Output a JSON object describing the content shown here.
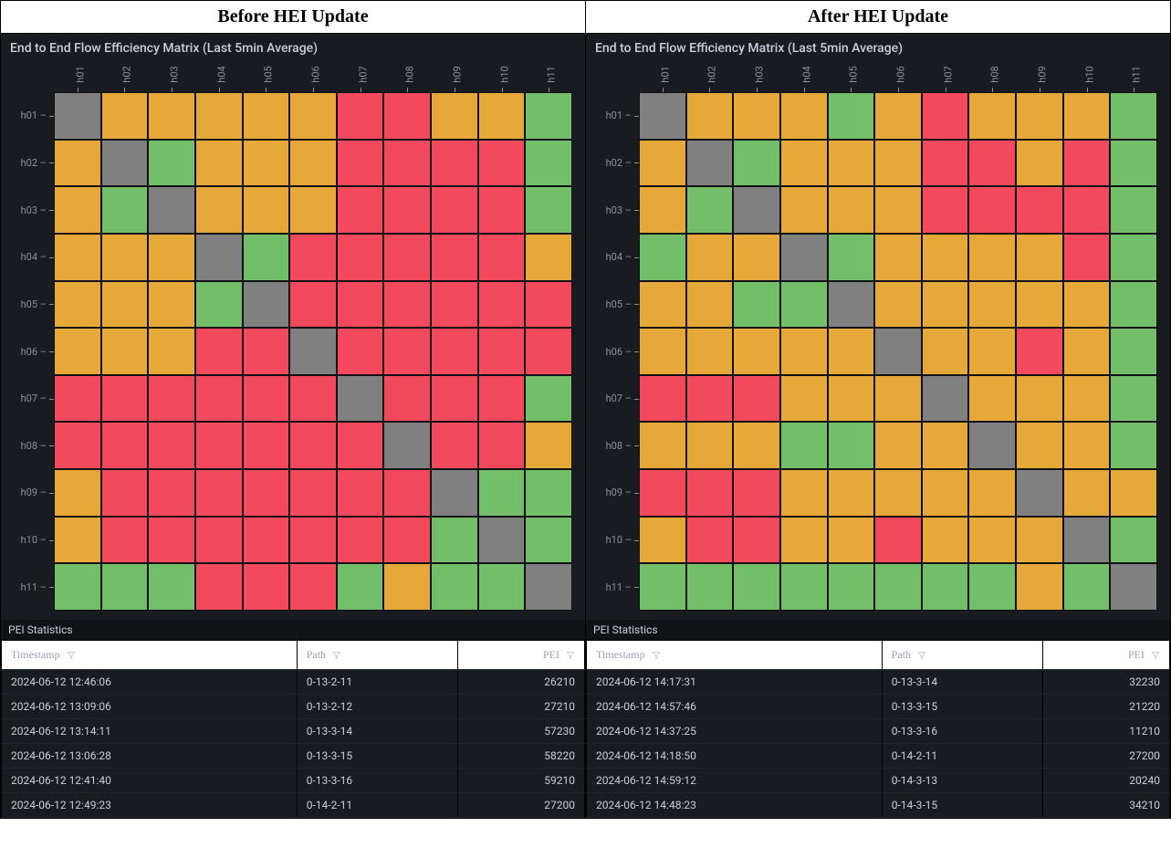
{
  "outer_headers": [
    "Before HEI Update",
    "After HEI Update"
  ],
  "colors": {
    "gray": "#808080",
    "orange": "#e7a83a",
    "red": "#f2495c",
    "green": "#73bf69",
    "panel_bg": "#181b1f",
    "cell_border": "#0f1115"
  },
  "panels": [
    {
      "title": "End to End Flow Efficiency Matrix (Last 5min Average)",
      "cols": [
        "h01",
        "h02",
        "h03",
        "h04",
        "h05",
        "h06",
        "h07",
        "h08",
        "h09",
        "h10",
        "h11"
      ],
      "rows": [
        "h01",
        "h02",
        "h03",
        "h04",
        "h05",
        "h06",
        "h07",
        "h08",
        "h09",
        "h10",
        "h11"
      ],
      "grid": [
        [
          "gray",
          "orange",
          "orange",
          "orange",
          "orange",
          "orange",
          "red",
          "red",
          "orange",
          "orange",
          "green"
        ],
        [
          "orange",
          "gray",
          "green",
          "orange",
          "orange",
          "orange",
          "red",
          "red",
          "red",
          "red",
          "green"
        ],
        [
          "orange",
          "green",
          "gray",
          "orange",
          "orange",
          "orange",
          "red",
          "red",
          "red",
          "red",
          "green"
        ],
        [
          "orange",
          "orange",
          "orange",
          "gray",
          "green",
          "red",
          "red",
          "red",
          "red",
          "red",
          "orange"
        ],
        [
          "orange",
          "orange",
          "orange",
          "green",
          "gray",
          "red",
          "red",
          "red",
          "red",
          "red",
          "red"
        ],
        [
          "orange",
          "orange",
          "orange",
          "red",
          "red",
          "gray",
          "red",
          "red",
          "red",
          "red",
          "red"
        ],
        [
          "red",
          "red",
          "red",
          "red",
          "red",
          "red",
          "gray",
          "red",
          "red",
          "red",
          "green"
        ],
        [
          "red",
          "red",
          "red",
          "red",
          "red",
          "red",
          "red",
          "gray",
          "red",
          "red",
          "orange"
        ],
        [
          "orange",
          "red",
          "red",
          "red",
          "red",
          "red",
          "red",
          "red",
          "gray",
          "green",
          "green"
        ],
        [
          "orange",
          "red",
          "red",
          "red",
          "red",
          "red",
          "red",
          "red",
          "green",
          "gray",
          "green"
        ],
        [
          "green",
          "green",
          "green",
          "red",
          "red",
          "red",
          "green",
          "orange",
          "green",
          "green",
          "gray"
        ]
      ],
      "stats": {
        "title": "PEI Statistics",
        "columns": [
          "Timestamp",
          "Path",
          "PEI"
        ],
        "rows": [
          [
            "2024-06-12 12:46:06",
            "0-13-2-11",
            "26210"
          ],
          [
            "2024-06-12 13:09:06",
            "0-13-2-12",
            "27210"
          ],
          [
            "2024-06-12 13:14:11",
            "0-13-3-14",
            "57230"
          ],
          [
            "2024-06-12 13:06:28",
            "0-13-3-15",
            "58220"
          ],
          [
            "2024-06-12 12:41:40",
            "0-13-3-16",
            "59210"
          ],
          [
            "2024-06-12 12:49:23",
            "0-14-2-11",
            "27200"
          ]
        ]
      }
    },
    {
      "title": "End to End Flow Efficiency Matrix (Last 5min Average)",
      "cols": [
        "h01",
        "h02",
        "h03",
        "h04",
        "h05",
        "h06",
        "h07",
        "h08",
        "h09",
        "h10",
        "h11"
      ],
      "rows": [
        "h01",
        "h02",
        "h03",
        "h04",
        "h05",
        "h06",
        "h07",
        "h08",
        "h09",
        "h10",
        "h11"
      ],
      "grid": [
        [
          "gray",
          "orange",
          "orange",
          "orange",
          "green",
          "orange",
          "red",
          "orange",
          "orange",
          "orange",
          "green"
        ],
        [
          "orange",
          "gray",
          "green",
          "orange",
          "orange",
          "orange",
          "red",
          "red",
          "orange",
          "red",
          "green"
        ],
        [
          "orange",
          "green",
          "gray",
          "orange",
          "orange",
          "orange",
          "red",
          "red",
          "red",
          "red",
          "green"
        ],
        [
          "green",
          "orange",
          "orange",
          "gray",
          "green",
          "orange",
          "orange",
          "orange",
          "orange",
          "red",
          "green"
        ],
        [
          "orange",
          "orange",
          "green",
          "green",
          "gray",
          "orange",
          "orange",
          "orange",
          "orange",
          "orange",
          "green"
        ],
        [
          "orange",
          "orange",
          "orange",
          "orange",
          "orange",
          "gray",
          "orange",
          "orange",
          "red",
          "orange",
          "green"
        ],
        [
          "red",
          "red",
          "red",
          "orange",
          "orange",
          "orange",
          "gray",
          "orange",
          "orange",
          "orange",
          "green"
        ],
        [
          "orange",
          "orange",
          "orange",
          "green",
          "green",
          "orange",
          "orange",
          "gray",
          "orange",
          "orange",
          "green"
        ],
        [
          "red",
          "red",
          "red",
          "orange",
          "orange",
          "orange",
          "orange",
          "orange",
          "gray",
          "orange",
          "orange"
        ],
        [
          "orange",
          "red",
          "red",
          "orange",
          "orange",
          "red",
          "orange",
          "orange",
          "orange",
          "gray",
          "green"
        ],
        [
          "green",
          "green",
          "green",
          "green",
          "green",
          "green",
          "green",
          "green",
          "orange",
          "green",
          "gray"
        ]
      ],
      "stats": {
        "title": "PEI Statistics",
        "columns": [
          "Timestamp",
          "Path",
          "PEI"
        ],
        "rows": [
          [
            "2024-06-12 14:17:31",
            "0-13-3-14",
            "32230"
          ],
          [
            "2024-06-12 14:57:46",
            "0-13-3-15",
            "21220"
          ],
          [
            "2024-06-12 14:37:25",
            "0-13-3-16",
            "11210"
          ],
          [
            "2024-06-12 14:18:50",
            "0-14-2-11",
            "27200"
          ],
          [
            "2024-06-12 14:59:12",
            "0-14-3-13",
            "20240"
          ],
          [
            "2024-06-12 14:48:23",
            "0-14-3-15",
            "34210"
          ]
        ]
      }
    }
  ]
}
